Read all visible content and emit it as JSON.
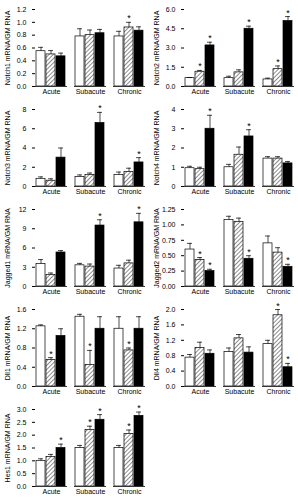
{
  "chart_data": [
    {
      "type": "bar",
      "y_label": "Notch1 mRNA/GM RNA",
      "categories": [
        "Acute",
        "Subacute",
        "Chronic"
      ],
      "ylim": [
        0,
        1.2
      ],
      "yticks": [
        {
          "value": 0,
          "label": "0.0"
        },
        0.2,
        0.4,
        0.6,
        0.8,
        {
          "value": 1,
          "label": "1.0"
        },
        1.2
      ],
      "series": [
        {
          "color": "#ffffff",
          "values": [
            0.55,
            0.78,
            0.78
          ],
          "errors": [
            0.06,
            0.12,
            0.08
          ],
          "annotations": [
            null,
            null,
            null
          ]
        },
        {
          "color": "#000000",
          "values": [
            0.5,
            0.8,
            0.92
          ],
          "errors": [
            0.06,
            0.08,
            0.08
          ],
          "annotations": [
            null,
            null,
            "*"
          ]
        },
        {
          "color": "#000000",
          "values": [
            0.47,
            0.83,
            0.87
          ],
          "errors": [
            0.05,
            0.06,
            0.06
          ],
          "annotations": [
            null,
            null,
            null
          ]
        }
      ]
    },
    {
      "type": "bar",
      "y_label": "Notch2 mRNA/GM RNA",
      "categories": [
        "Acute",
        "Subacute",
        "Chronic"
      ],
      "ylim": [
        0,
        6
      ],
      "yticks": [
        {
          "value": 0,
          "label": "0.0"
        },
        1.5,
        {
          "value": 3,
          "label": "3.0"
        },
        4.5,
        {
          "value": 6,
          "label": "6.0"
        }
      ],
      "series": [
        {
          "color": "#ffffff",
          "values": [
            0.65,
            0.65,
            0.55
          ],
          "errors": [
            0.05,
            0.15,
            0.1
          ],
          "annotations": [
            null,
            null,
            null
          ]
        },
        {
          "color": "#000000",
          "values": [
            1.15,
            1.1,
            1.35
          ],
          "errors": [
            0.1,
            0.2,
            0.25
          ],
          "annotations": [
            "*",
            null,
            "*"
          ]
        },
        {
          "color": "#000000",
          "values": [
            3.2,
            4.5,
            5.1
          ],
          "errors": [
            0.25,
            0.2,
            0.35
          ],
          "annotations": [
            "*",
            "*",
            "*"
          ]
        }
      ]
    },
    {
      "type": "bar",
      "y_label": "Notch3 mRNA/GM RNA",
      "categories": [
        "Acute",
        "Subacute",
        "Chronic"
      ],
      "ylim": [
        0,
        8
      ],
      "yticks": [
        0,
        2,
        4,
        6,
        8
      ],
      "series": [
        {
          "color": "#ffffff",
          "values": [
            0.8,
            1.0,
            1.2
          ],
          "errors": [
            0.2,
            0.2,
            0.3
          ],
          "annotations": [
            null,
            null,
            null
          ]
        },
        {
          "color": "#000000",
          "values": [
            0.6,
            1.2,
            1.5
          ],
          "errors": [
            0.2,
            0.2,
            0.4
          ],
          "annotations": [
            null,
            null,
            null
          ]
        },
        {
          "color": "#000000",
          "values": [
            3.0,
            6.6,
            2.5
          ],
          "errors": [
            1.0,
            1.1,
            0.5
          ],
          "annotations": [
            null,
            "*",
            "*"
          ]
        }
      ]
    },
    {
      "type": "bar",
      "y_label": "Notch4 mRNA/GM RNA",
      "categories": [
        "Acute",
        "Subacute",
        "Chronic"
      ],
      "ylim": [
        0,
        4
      ],
      "yticks": [
        0,
        1,
        2,
        3,
        4
      ],
      "series": [
        {
          "color": "#ffffff",
          "values": [
            0.95,
            1.0,
            1.45
          ],
          "errors": [
            0.1,
            0.15,
            0.1
          ],
          "annotations": [
            null,
            null,
            null
          ]
        },
        {
          "color": "#000000",
          "values": [
            0.9,
            1.65,
            1.45
          ],
          "errors": [
            0.1,
            0.4,
            0.1
          ],
          "annotations": [
            null,
            null,
            null
          ]
        },
        {
          "color": "#000000",
          "values": [
            3.0,
            2.6,
            1.2
          ],
          "errors": [
            0.7,
            0.35,
            0.1
          ],
          "annotations": [
            "*",
            "*",
            null
          ]
        }
      ]
    },
    {
      "type": "bar",
      "y_label": "Jagged1 mRNA/GM RNA",
      "categories": [
        "Acute",
        "Subacute",
        "Chronic"
      ],
      "ylim": [
        0,
        12
      ],
      "yticks": [
        0,
        3,
        6,
        9,
        12
      ],
      "series": [
        {
          "color": "#ffffff",
          "values": [
            3.5,
            3.3,
            2.8
          ],
          "errors": [
            0.7,
            0.3,
            0.5
          ],
          "annotations": [
            null,
            null,
            null
          ]
        },
        {
          "color": "#000000",
          "values": [
            1.8,
            3.1,
            3.6
          ],
          "errors": [
            0.3,
            0.4,
            0.5
          ],
          "annotations": [
            null,
            null,
            null
          ]
        },
        {
          "color": "#000000",
          "values": [
            5.3,
            9.5,
            10.0
          ],
          "errors": [
            0.3,
            0.9,
            1.4
          ],
          "annotations": [
            null,
            "*",
            "*"
          ]
        }
      ]
    },
    {
      "type": "bar",
      "y_label": "Jagged2 mRNA/GM RNA",
      "categories": [
        "Acute",
        "Subacute",
        "Chronic"
      ],
      "ylim": [
        0,
        1.25
      ],
      "yticks": [
        {
          "value": 0,
          "label": "0.00"
        },
        0.25,
        {
          "value": 0.5,
          "label": "0.50"
        },
        0.75,
        {
          "value": 1,
          "label": "1.00"
        },
        1.25
      ],
      "series": [
        {
          "color": "#ffffff",
          "values": [
            0.6,
            1.08,
            0.7
          ],
          "errors": [
            0.1,
            0.06,
            0.12
          ],
          "annotations": [
            null,
            null,
            null
          ]
        },
        {
          "color": "#000000",
          "values": [
            0.43,
            1.05,
            0.55
          ],
          "errors": [
            0.04,
            0.06,
            0.08
          ],
          "annotations": [
            "*",
            null,
            null
          ]
        },
        {
          "color": "#000000",
          "values": [
            0.25,
            0.45,
            0.32
          ],
          "errors": [
            0.03,
            0.05,
            0.04
          ],
          "annotations": [
            "*",
            "*",
            "*"
          ]
        }
      ]
    },
    {
      "type": "bar",
      "y_label": "Dll1 mRNA/GM RNA",
      "categories": [
        "Acute",
        "Subacute",
        "Chronic"
      ],
      "ylim": [
        0,
        1.6
      ],
      "yticks": [
        {
          "value": 0,
          "label": "0.0"
        },
        0.4,
        0.8,
        1.2,
        1.6
      ],
      "series": [
        {
          "color": "#ffffff",
          "values": [
            1.25,
            1.45,
            1.2
          ],
          "errors": [
            0.03,
            0.05,
            0.25
          ],
          "annotations": [
            null,
            null,
            null
          ]
        },
        {
          "color": "#000000",
          "values": [
            0.55,
            0.45,
            0.75
          ],
          "errors": [
            0.05,
            0.3,
            0.05
          ],
          "annotations": [
            "*",
            "*",
            "*"
          ]
        },
        {
          "color": "#000000",
          "values": [
            1.05,
            1.2,
            1.2
          ],
          "errors": [
            0.15,
            0.25,
            0.25
          ],
          "annotations": [
            null,
            null,
            null
          ]
        }
      ]
    },
    {
      "type": "bar",
      "y_label": "Dll4 mRNA/GM RNA",
      "categories": [
        "Acute",
        "Subacute",
        "Chronic"
      ],
      "ylim": [
        0,
        2
      ],
      "yticks": [
        {
          "value": 0,
          "label": "0.0"
        },
        0.4,
        0.8,
        1.2,
        1.6,
        {
          "value": 2,
          "label": "2.0"
        }
      ],
      "series": [
        {
          "color": "#ffffff",
          "values": [
            0.75,
            0.9,
            1.1
          ],
          "errors": [
            0.08,
            0.1,
            0.1
          ],
          "annotations": [
            null,
            null,
            null
          ]
        },
        {
          "color": "#000000",
          "values": [
            1.0,
            1.25,
            1.85
          ],
          "errors": [
            0.15,
            0.1,
            0.15
          ],
          "annotations": [
            null,
            null,
            "*"
          ]
        },
        {
          "color": "#000000",
          "values": [
            0.85,
            0.88,
            0.5
          ],
          "errors": [
            0.1,
            0.15,
            0.1
          ],
          "annotations": [
            null,
            null,
            "*"
          ]
        }
      ]
    },
    {
      "type": "bar",
      "y_label": "Hes1 mRNA/GM RNA",
      "categories": [
        "Acute",
        "Subacute",
        "Chronic"
      ],
      "ylim": [
        0,
        3
      ],
      "yticks": [
        {
          "value": 0,
          "label": "0.0"
        },
        0.5,
        {
          "value": 1,
          "label": "1.0"
        },
        1.5,
        {
          "value": 2,
          "label": "2.0"
        },
        2.5,
        {
          "value": 3,
          "label": "3.0"
        }
      ],
      "series": [
        {
          "color": "#ffffff",
          "values": [
            1.0,
            1.5,
            1.5
          ],
          "errors": [
            0.08,
            0.1,
            0.1
          ],
          "annotations": [
            null,
            null,
            null
          ]
        },
        {
          "color": "#000000",
          "values": [
            1.15,
            2.2,
            2.05
          ],
          "errors": [
            0.1,
            0.15,
            0.15
          ],
          "annotations": [
            null,
            "*",
            "*"
          ]
        },
        {
          "color": "#000000",
          "values": [
            1.5,
            2.6,
            2.75
          ],
          "errors": [
            0.15,
            0.2,
            0.15
          ],
          "annotations": [
            "*",
            "*",
            "*"
          ]
        }
      ]
    }
  ]
}
